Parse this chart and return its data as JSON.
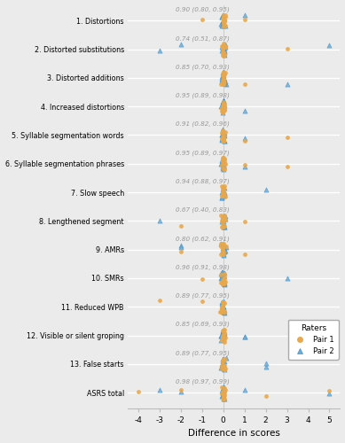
{
  "categories": [
    "1. Distortions",
    "2. Distorted substitutions",
    "3. Distorted additions",
    "4. Increased distortions",
    "5. Syllable segmentation words",
    "6. Syllable segmentation phrases",
    "7. Slow speech",
    "8. Lengthened segment",
    "9. AMRs",
    "10. SMRs",
    "11. Reduced WPB",
    "12. Visible or silent groping",
    "13. False starts",
    "ASRS total"
  ],
  "annotations": [
    "0.90 (0.80, 0.95)",
    "0.74 (0.51, 0.87)",
    "0.85 (0.70, 0.93)",
    "0.95 (0.89, 0.98)",
    "0.91 (0.82, 0.96)",
    "0.95 (0.89, 0.97)",
    "0.94 (0.88, 0.97)",
    "0.67 (0.40, 0.83)",
    "0.80 (0.62, 0.91)",
    "0.96 (0.91, 0.98)",
    "0.89 (0.77, 0.95)",
    "0.85 (0.69, 0.93)",
    "0.89 (0.77, 0.95)",
    "0.98 (0.97, 0.99)"
  ],
  "pair1_points": [
    [
      -1,
      0,
      0,
      0,
      0,
      0,
      0,
      0,
      0,
      0,
      0,
      0,
      0,
      0,
      0,
      0,
      0,
      0,
      1,
      0
    ],
    [
      3,
      0,
      0,
      0,
      0,
      0,
      0,
      0,
      0,
      0,
      0,
      0,
      0,
      0,
      0,
      0,
      0,
      0,
      0,
      0
    ],
    [
      1,
      0,
      0,
      0,
      0,
      0,
      0,
      0,
      0,
      0,
      0,
      0,
      0,
      0,
      0,
      0,
      0,
      0,
      0,
      0
    ],
    [
      0,
      0,
      0,
      0,
      0,
      0,
      0,
      0,
      0,
      0,
      0,
      0,
      0,
      0,
      0,
      0,
      0,
      0,
      0,
      0
    ],
    [
      1,
      0,
      0,
      0,
      0,
      0,
      0,
      0,
      0,
      0,
      0,
      0,
      0,
      0,
      0,
      0,
      3,
      0,
      0,
      0
    ],
    [
      1,
      0,
      0,
      0,
      0,
      0,
      0,
      0,
      0,
      0,
      0,
      0,
      0,
      0,
      0,
      0,
      3,
      0,
      0,
      0
    ],
    [
      0,
      0,
      0,
      0,
      0,
      0,
      0,
      0,
      0,
      0,
      0,
      0,
      0,
      0,
      0,
      0,
      0,
      0,
      0,
      0
    ],
    [
      -2,
      0,
      0,
      0,
      0,
      0,
      0,
      0,
      0,
      0,
      0,
      0,
      0,
      0,
      0,
      1,
      0,
      0,
      0,
      0
    ],
    [
      -2,
      0,
      0,
      0,
      0,
      0,
      0,
      0,
      0,
      0,
      0,
      0,
      0,
      0,
      0,
      1,
      0,
      0,
      0,
      0
    ],
    [
      -1,
      0,
      0,
      0,
      0,
      0,
      0,
      0,
      0,
      0,
      0,
      0,
      0,
      0,
      0,
      0,
      0,
      0,
      0,
      0
    ],
    [
      -3,
      -1,
      0,
      0,
      0,
      0,
      0,
      0,
      0,
      0,
      0,
      0,
      0,
      0,
      0,
      0,
      0,
      0,
      0,
      0
    ],
    [
      0,
      0,
      0,
      0,
      0,
      0,
      0,
      0,
      0,
      0,
      0,
      0,
      0,
      0,
      0,
      0,
      0,
      0,
      0,
      0
    ],
    [
      0,
      0,
      0,
      0,
      0,
      0,
      0,
      0,
      0,
      0,
      0,
      0,
      0,
      0,
      0,
      0,
      0,
      0,
      0,
      0
    ],
    [
      -4,
      -2,
      0,
      0,
      0,
      0,
      0,
      0,
      0,
      2,
      0,
      0,
      5,
      0,
      0,
      0,
      0,
      0,
      0,
      0
    ]
  ],
  "pair2_points": [
    [
      1,
      0,
      0,
      0,
      0,
      0,
      0,
      0,
      0,
      0,
      0,
      0,
      0,
      0,
      0,
      0,
      0,
      0,
      0,
      0
    ],
    [
      -3,
      -2,
      5,
      0,
      0,
      0,
      0,
      0,
      0,
      0,
      0,
      0,
      0,
      0,
      0,
      0,
      0,
      0,
      0,
      0
    ],
    [
      3,
      0,
      0,
      0,
      0,
      0,
      0,
      0,
      0,
      0,
      0,
      0,
      0,
      0,
      0,
      0,
      0,
      0,
      0,
      0
    ],
    [
      1,
      0,
      0,
      0,
      0,
      0,
      0,
      0,
      0,
      0,
      0,
      0,
      0,
      0,
      0,
      0,
      0,
      0,
      0,
      0
    ],
    [
      1,
      0,
      0,
      0,
      0,
      0,
      0,
      0,
      0,
      0,
      0,
      0,
      0,
      0,
      0,
      0,
      0,
      0,
      0,
      0
    ],
    [
      1,
      0,
      0,
      0,
      0,
      0,
      0,
      0,
      0,
      0,
      0,
      0,
      0,
      0,
      0,
      0,
      0,
      0,
      0,
      0
    ],
    [
      2,
      0,
      0,
      0,
      0,
      0,
      0,
      0,
      0,
      0,
      0,
      0,
      0,
      0,
      0,
      0,
      0,
      0,
      0,
      0
    ],
    [
      -3,
      0,
      0,
      0,
      0,
      0,
      0,
      0,
      0,
      0,
      0,
      0,
      0,
      0,
      0,
      0,
      0,
      0,
      0,
      0
    ],
    [
      -2,
      -2,
      0,
      0,
      0,
      0,
      0,
      0,
      0,
      0,
      0,
      0,
      0,
      0,
      0,
      0,
      0,
      0,
      0,
      0
    ],
    [
      3,
      0,
      0,
      0,
      0,
      0,
      0,
      0,
      0,
      0,
      0,
      0,
      0,
      0,
      0,
      0,
      0,
      0,
      0,
      0
    ],
    [
      0,
      0,
      0,
      0,
      0,
      0,
      0,
      0,
      0,
      0,
      0,
      0,
      0,
      0,
      0,
      0,
      0,
      0,
      0,
      0
    ],
    [
      1,
      1,
      0,
      0,
      0,
      0,
      0,
      0,
      0,
      0,
      0,
      0,
      0,
      0,
      0,
      0,
      0,
      0,
      0,
      0
    ],
    [
      2,
      2,
      0,
      0,
      0,
      0,
      0,
      0,
      0,
      0,
      0,
      0,
      0,
      0,
      0,
      0,
      0,
      0,
      0,
      0
    ],
    [
      -3,
      -2,
      1,
      5,
      0,
      0,
      0,
      0,
      0,
      0,
      0,
      0,
      0,
      0,
      0,
      0,
      0,
      0,
      0,
      0
    ]
  ],
  "xlabel": "Difference in scores",
  "xlim": [
    -4.5,
    5.5
  ],
  "xticks": [
    -4,
    -3,
    -2,
    -1,
    0,
    1,
    2,
    3,
    4,
    5
  ],
  "bg_color": "#ebebeb",
  "pair1_color": "#E8A84C",
  "pair2_color": "#6AAED6",
  "pair2_edge": "#4a8fc4",
  "annot_color": "#999999",
  "grid_color": "#ffffff"
}
